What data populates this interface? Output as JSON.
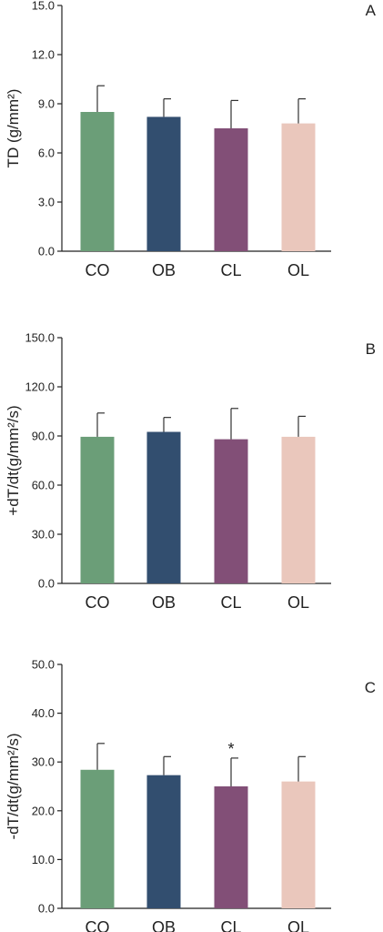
{
  "chart_data": [
    {
      "type": "bar",
      "panel_label": "A",
      "ylabel": "TD (g/mm²)",
      "categories": [
        "CO",
        "OB",
        "CL",
        "OL"
      ],
      "values": [
        8.5,
        8.2,
        7.5,
        7.8
      ],
      "errors": [
        1.6,
        1.1,
        1.7,
        1.5
      ],
      "ylim": [
        0,
        15
      ],
      "yticks": [
        "0.0",
        "3.0",
        "6.0",
        "9.0",
        "12.0",
        "15.0"
      ],
      "colors": [
        "#6b9e78",
        "#324e6f",
        "#824f77",
        "#eac7bc"
      ],
      "grid": false,
      "annotations": []
    },
    {
      "type": "bar",
      "panel_label": "B",
      "ylabel": "+dT/dt(g/mm²/s)",
      "categories": [
        "CO",
        "OB",
        "CL",
        "OL"
      ],
      "values": [
        89.5,
        92.5,
        88.0,
        89.5
      ],
      "errors": [
        14.5,
        8.8,
        18.8,
        12.5
      ],
      "ylim": [
        0,
        150
      ],
      "yticks": [
        "0.0",
        "30.0",
        "60.0",
        "90.0",
        "120.0",
        "150.0"
      ],
      "colors": [
        "#6b9e78",
        "#324e6f",
        "#824f77",
        "#eac7bc"
      ],
      "grid": false,
      "annotations": []
    },
    {
      "type": "bar",
      "panel_label": "C",
      "ylabel": "-dT/dt(g/mm²/s)",
      "categories": [
        "CO",
        "OB",
        "CL",
        "OL"
      ],
      "values": [
        28.4,
        27.3,
        25.0,
        26.0
      ],
      "errors": [
        5.4,
        3.8,
        5.8,
        5.1
      ],
      "ylim": [
        0,
        50
      ],
      "yticks": [
        "0.0",
        "10.0",
        "20.0",
        "30.0",
        "40.0",
        "50.0"
      ],
      "colors": [
        "#6b9e78",
        "#324e6f",
        "#824f77",
        "#eac7bc"
      ],
      "grid": false,
      "annotations": [
        {
          "category": "CL",
          "text": "*"
        }
      ]
    }
  ]
}
